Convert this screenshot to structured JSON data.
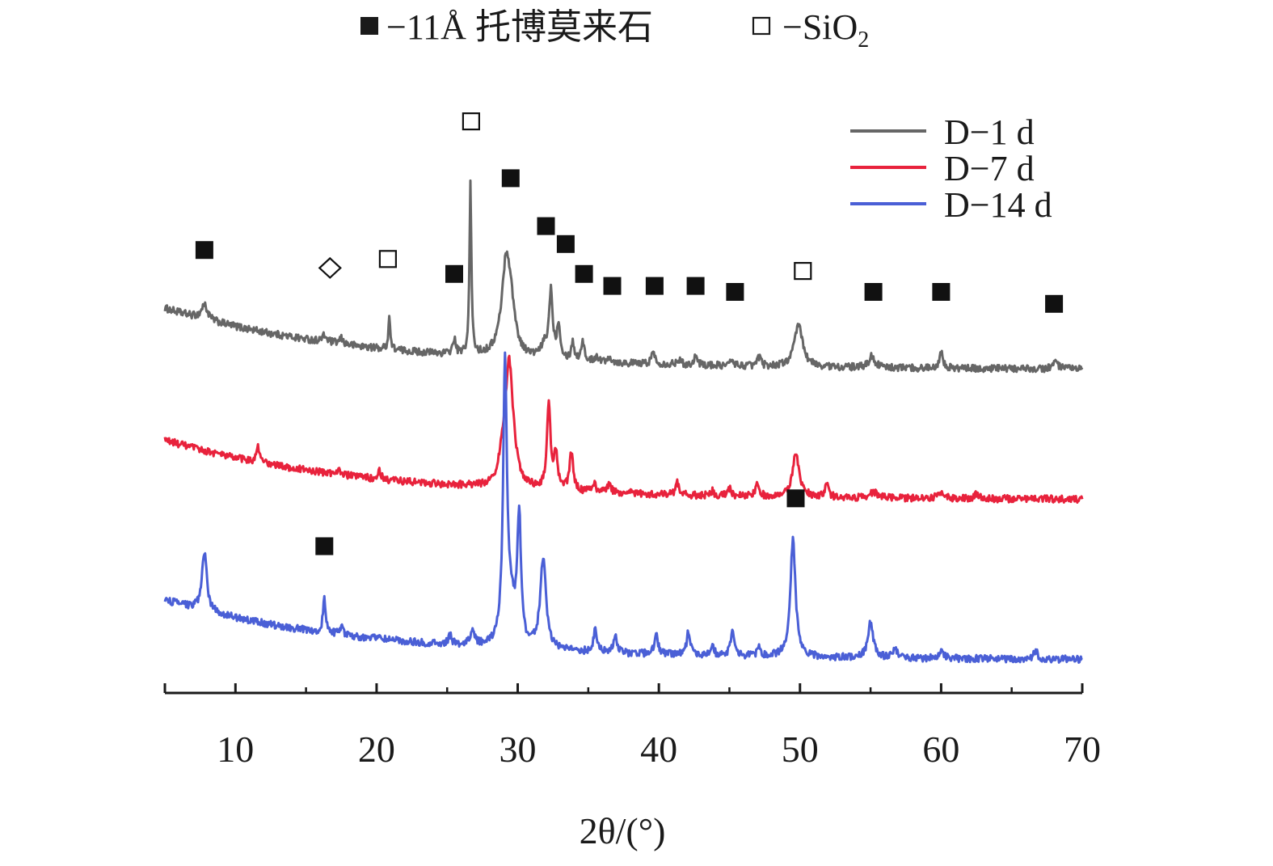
{
  "marker_legend": {
    "tobermorite_label": "−11Å 托博莫来石",
    "sio2_label_main": "−SiO",
    "sio2_label_sub": "2"
  },
  "chart_data": {
    "type": "line",
    "xlabel": "2θ/(°)",
    "xlim": [
      5,
      70
    ],
    "x_ticks": [
      10,
      20,
      30,
      40,
      50,
      60,
      70
    ],
    "x_minor_ticks": [
      15,
      25,
      35,
      45,
      55,
      65
    ],
    "y_axis_shown": false,
    "grid": false,
    "legend_position": "top-right",
    "series": [
      {
        "name": "D−1 d",
        "color": "#666666",
        "baseline": {
          "start": 0.645,
          "end": 0.44,
          "k": 0.07
        },
        "noise_amp": 0.012,
        "peaks": [
          [
            7.8,
            0.05,
            0.25
          ],
          [
            16.3,
            0.02,
            0.2
          ],
          [
            17.5,
            0.018,
            0.15
          ],
          [
            20.9,
            0.11,
            0.08
          ],
          [
            25.5,
            0.05,
            0.12
          ],
          [
            26.65,
            0.57,
            0.08
          ],
          [
            29.2,
            0.33,
            0.4
          ],
          [
            29.6,
            0.07,
            0.3
          ],
          [
            31.9,
            0.04,
            0.3
          ],
          [
            32.35,
            0.22,
            0.15
          ],
          [
            32.9,
            0.11,
            0.15
          ],
          [
            33.9,
            0.06,
            0.12
          ],
          [
            34.6,
            0.07,
            0.12
          ],
          [
            35.6,
            0.02,
            0.15
          ],
          [
            36.5,
            0.02,
            0.15
          ],
          [
            39.6,
            0.04,
            0.15
          ],
          [
            41.4,
            0.02,
            0.15
          ],
          [
            42.6,
            0.03,
            0.15
          ],
          [
            45.2,
            0.02,
            0.15
          ],
          [
            47.1,
            0.03,
            0.15
          ],
          [
            49.9,
            0.14,
            0.35
          ],
          [
            55.1,
            0.04,
            0.25
          ],
          [
            60.0,
            0.06,
            0.15
          ],
          [
            68.1,
            0.025,
            0.2
          ]
        ]
      },
      {
        "name": "D−7 d",
        "color": "#e8223c",
        "baseline": {
          "start": 0.205,
          "end": 0.005,
          "k": 0.07
        },
        "noise_amp": 0.012,
        "peaks": [
          [
            11.6,
            0.05,
            0.12
          ],
          [
            17.3,
            0.02,
            0.15
          ],
          [
            20.2,
            0.03,
            0.12
          ],
          [
            29.4,
            0.42,
            0.35
          ],
          [
            28.9,
            0.05,
            0.3
          ],
          [
            32.2,
            0.28,
            0.15
          ],
          [
            32.7,
            0.12,
            0.15
          ],
          [
            33.8,
            0.13,
            0.15
          ],
          [
            35.4,
            0.03,
            0.15
          ],
          [
            36.5,
            0.03,
            0.15
          ],
          [
            38.0,
            0.015,
            0.15
          ],
          [
            41.3,
            0.04,
            0.15
          ],
          [
            43.8,
            0.015,
            0.15
          ],
          [
            45.0,
            0.025,
            0.15
          ],
          [
            47.0,
            0.04,
            0.15
          ],
          [
            49.7,
            0.14,
            0.3
          ],
          [
            51.9,
            0.045,
            0.15
          ],
          [
            55.2,
            0.02,
            0.3
          ],
          [
            60.0,
            0.02,
            0.3
          ],
          [
            62.5,
            0.015,
            0.2
          ]
        ]
      },
      {
        "name": "D−14 d",
        "color": "#4a5fd6",
        "baseline": {
          "start": -0.33,
          "end": -0.53,
          "k": 0.07
        },
        "noise_amp": 0.012,
        "peaks": [
          [
            7.8,
            0.2,
            0.2
          ],
          [
            16.3,
            0.11,
            0.12
          ],
          [
            17.5,
            0.03,
            0.12
          ],
          [
            20.2,
            0.02,
            0.12
          ],
          [
            25.2,
            0.03,
            0.15
          ],
          [
            26.8,
            0.05,
            0.2
          ],
          [
            29.1,
            0.92,
            0.16
          ],
          [
            29.5,
            0.12,
            0.4
          ],
          [
            30.1,
            0.42,
            0.15
          ],
          [
            31.8,
            0.3,
            0.25
          ],
          [
            35.5,
            0.08,
            0.15
          ],
          [
            36.9,
            0.06,
            0.15
          ],
          [
            39.8,
            0.07,
            0.15
          ],
          [
            42.1,
            0.08,
            0.15
          ],
          [
            43.8,
            0.03,
            0.15
          ],
          [
            45.2,
            0.08,
            0.15
          ],
          [
            47.1,
            0.03,
            0.15
          ],
          [
            49.5,
            0.39,
            0.22
          ],
          [
            55.0,
            0.12,
            0.22
          ],
          [
            56.7,
            0.03,
            0.2
          ],
          [
            60.0,
            0.03,
            0.2
          ],
          [
            66.7,
            0.03,
            0.15
          ]
        ]
      }
    ],
    "annotations": [
      {
        "series": "D−1 d",
        "x": 7.8,
        "y": 0.84,
        "marker": "filled-square",
        "phase": "11Å tobermorite"
      },
      {
        "series": "D−1 d",
        "x": 16.7,
        "y": 0.78,
        "marker": "open-diamond",
        "phase": "unlabeled"
      },
      {
        "series": "D−1 d",
        "x": 20.8,
        "y": 0.81,
        "marker": "open-square",
        "phase": "SiO2"
      },
      {
        "series": "D−1 d",
        "x": 25.5,
        "y": 0.76,
        "marker": "filled-square",
        "phase": "11Å tobermorite"
      },
      {
        "series": "D−1 d",
        "x": 26.7,
        "y": 1.27,
        "marker": "open-square",
        "phase": "SiO2"
      },
      {
        "series": "D−1 d",
        "x": 29.5,
        "y": 1.08,
        "marker": "filled-square",
        "phase": "11Å tobermorite"
      },
      {
        "series": "D−1 d",
        "x": 32.0,
        "y": 0.92,
        "marker": "filled-square",
        "phase": "11Å tobermorite"
      },
      {
        "series": "D−1 d",
        "x": 33.4,
        "y": 0.86,
        "marker": "filled-square",
        "phase": "11Å tobermorite"
      },
      {
        "series": "D−1 d",
        "x": 34.7,
        "y": 0.76,
        "marker": "filled-square",
        "phase": "11Å tobermorite"
      },
      {
        "series": "D−1 d",
        "x": 36.7,
        "y": 0.72,
        "marker": "filled-square",
        "phase": "11Å tobermorite"
      },
      {
        "series": "D−1 d",
        "x": 39.7,
        "y": 0.72,
        "marker": "filled-square",
        "phase": "11Å tobermorite"
      },
      {
        "series": "D−1 d",
        "x": 42.6,
        "y": 0.72,
        "marker": "filled-square",
        "phase": "11Å tobermorite"
      },
      {
        "series": "D−1 d",
        "x": 45.4,
        "y": 0.7,
        "marker": "filled-square",
        "phase": "11Å tobermorite"
      },
      {
        "series": "D−1 d",
        "x": 50.2,
        "y": 0.77,
        "marker": "open-square",
        "phase": "SiO2"
      },
      {
        "series": "D−1 d",
        "x": 55.2,
        "y": 0.7,
        "marker": "filled-square",
        "phase": "11Å tobermorite"
      },
      {
        "series": "D−1 d",
        "x": 60.0,
        "y": 0.7,
        "marker": "filled-square",
        "phase": "11Å tobermorite"
      },
      {
        "series": "D−1 d",
        "x": 68.0,
        "y": 0.66,
        "marker": "filled-square",
        "phase": "11Å tobermorite"
      },
      {
        "series": "D−14 d",
        "x": 16.3,
        "y": -0.15,
        "marker": "filled-square",
        "phase": "11Å tobermorite"
      },
      {
        "series": "D−14 d",
        "x": 49.7,
        "y": 0.01,
        "marker": "filled-square",
        "phase": "11Å tobermorite"
      }
    ]
  }
}
